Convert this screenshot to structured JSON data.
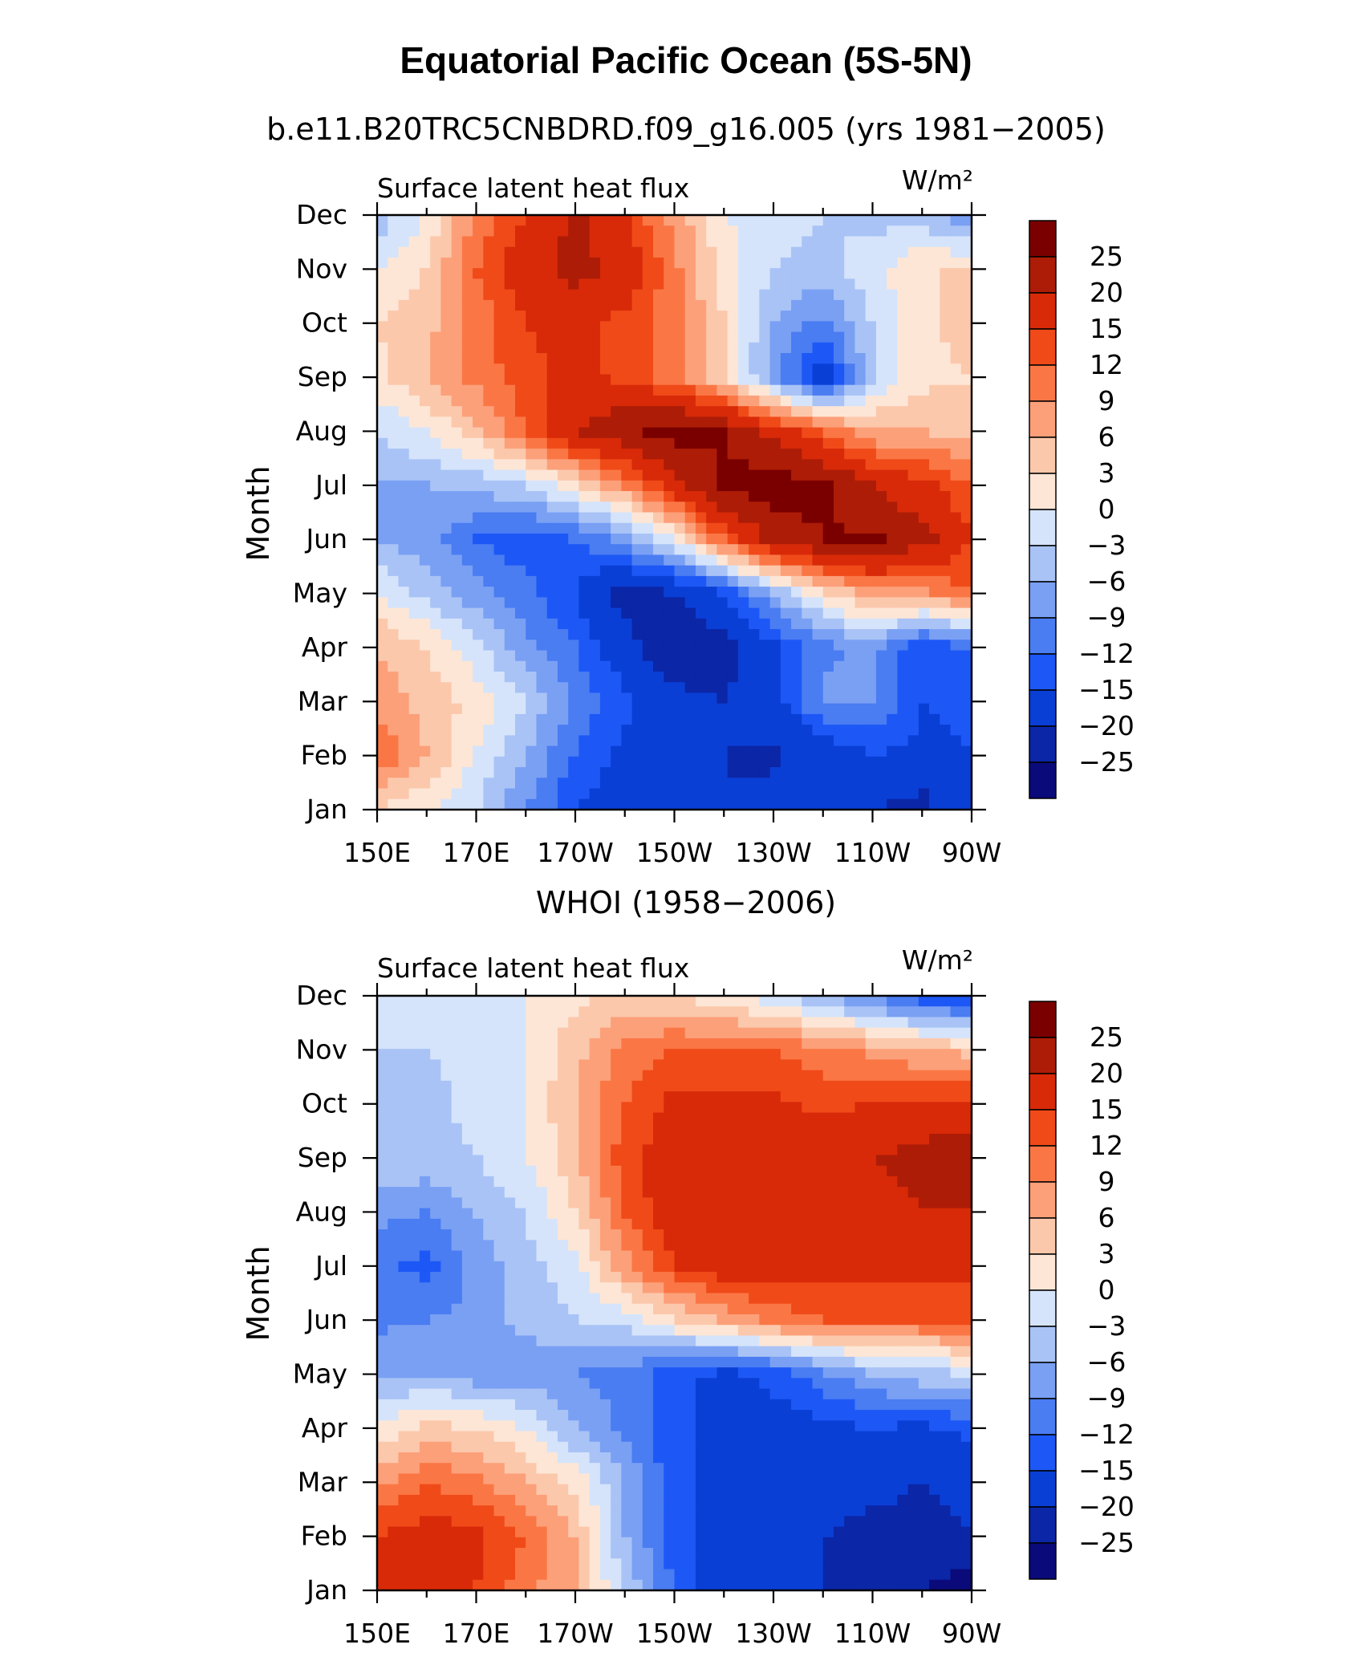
{
  "figure": {
    "title": "Equatorial Pacific Ocean (5S-5N)"
  },
  "palette": {
    "levels": [
      -25,
      -20,
      -15,
      -12,
      -9,
      -6,
      -3,
      0,
      3,
      6,
      9,
      12,
      15,
      20,
      25
    ],
    "colors": [
      "#0a0a7a",
      "#0b26a6",
      "#0a3fd6",
      "#1d58f6",
      "#4a7cf2",
      "#7aa0f4",
      "#a9c3f6",
      "#d5e4fb",
      "#fde6d6",
      "#fcc8ac",
      "#fca07a",
      "#fa7745",
      "#f04a19",
      "#d82a08",
      "#ad1c06",
      "#7a0000"
    ]
  },
  "chart_data": [
    {
      "type": "heatmap",
      "subtitle": "b.e11.B20TRC5CNBDRD.f09_g16.005 (yrs 1981−2005)",
      "left_string": "Surface latent heat flux",
      "units": "W/m²",
      "ylabel": "Month",
      "x_ticks": [
        "150E",
        "170E",
        "170W",
        "150W",
        "130W",
        "110W",
        "90W"
      ],
      "y_ticks": [
        "Jan",
        "Feb",
        "Mar",
        "Apr",
        "May",
        "Jun",
        "Jul",
        "Aug",
        "Sep",
        "Oct",
        "Nov",
        "Dec"
      ],
      "colorbar_labels": [
        "25",
        "20",
        "15",
        "12",
        "9",
        "6",
        "3",
        "0",
        "−3",
        "−6",
        "−9",
        "−12",
        "−15",
        "−20",
        "−25"
      ],
      "x_lon": [
        150,
        160,
        170,
        180,
        190,
        200,
        210,
        220,
        230,
        240,
        250,
        260,
        270
      ],
      "months": [
        1,
        2,
        3,
        4,
        5,
        6,
        7,
        8,
        9,
        10,
        11,
        12
      ],
      "z": [
        [
          3,
          0,
          -3,
          -9,
          -15,
          -18,
          -20,
          -20,
          -18,
          -15,
          -20,
          -22,
          -15
        ],
        [
          12,
          6,
          0,
          -6,
          -12,
          -16,
          -18,
          -20,
          -21,
          -18,
          -15,
          -16,
          -15
        ],
        [
          8,
          5,
          2,
          -3,
          -10,
          -14,
          -18,
          -20,
          -17,
          -8,
          -9,
          -15,
          -14
        ],
        [
          6,
          3,
          -2,
          -8,
          -12,
          -18,
          -25,
          -22,
          -16,
          -10,
          -8,
          -15,
          -12
        ],
        [
          0,
          -4,
          -8,
          -11,
          -15,
          -22,
          -20,
          -15,
          -6,
          2,
          8,
          8,
          12
        ],
        [
          -6,
          -8,
          -12,
          -14,
          -12,
          -8,
          0,
          12,
          22,
          25,
          26,
          22,
          15
        ],
        [
          -6,
          -6,
          -5,
          -3,
          2,
          9,
          18,
          26,
          28,
          26,
          20,
          16,
          12
        ],
        [
          -3,
          0,
          5,
          12,
          20,
          24,
          27,
          25,
          18,
          12,
          6,
          6,
          5
        ],
        [
          2,
          6,
          10,
          14,
          16,
          14,
          10,
          3,
          -8,
          -18,
          -3,
          2,
          3
        ],
        [
          3,
          5,
          10,
          15,
          16,
          14,
          10,
          3,
          -6,
          -10,
          -3,
          2,
          5
        ],
        [
          0,
          3,
          12,
          18,
          22,
          18,
          10,
          2,
          -3,
          -4,
          -1,
          3,
          3
        ],
        [
          -5,
          0,
          10,
          15,
          21,
          15,
          8,
          0,
          -2,
          -3,
          -4,
          -5,
          -8
        ]
      ]
    },
    {
      "type": "heatmap",
      "subtitle": "WHOI (1958−2006)",
      "left_string": "Surface latent heat flux",
      "units": "W/m²",
      "ylabel": "Month",
      "x_ticks": [
        "150E",
        "170E",
        "170W",
        "150W",
        "130W",
        "110W",
        "90W"
      ],
      "y_ticks": [
        "Jan",
        "Feb",
        "Mar",
        "Apr",
        "May",
        "Jun",
        "Jul",
        "Aug",
        "Sep",
        "Oct",
        "Nov",
        "Dec"
      ],
      "colorbar_labels": [
        "25",
        "20",
        "15",
        "12",
        "9",
        "6",
        "3",
        "0",
        "−3",
        "−6",
        "−9",
        "−12",
        "−15",
        "−20",
        "−25"
      ],
      "x_lon": [
        150,
        160,
        170,
        180,
        190,
        200,
        210,
        220,
        230,
        240,
        250,
        260,
        270
      ],
      "months": [
        1,
        2,
        3,
        4,
        5,
        6,
        7,
        8,
        9,
        10,
        11,
        12
      ],
      "z": [
        [
          16,
          16,
          15,
          10,
          6,
          -3,
          -12,
          -18,
          -20,
          -20,
          -22,
          -25,
          -28
        ],
        [
          15,
          17,
          16,
          12,
          6,
          -6,
          -14,
          -16,
          -18,
          -20,
          -22,
          -23,
          -20
        ],
        [
          8,
          12,
          10,
          6,
          2,
          -6,
          -14,
          -16,
          -17,
          -17,
          -18,
          -20,
          -18
        ],
        [
          0,
          4,
          3,
          0,
          -6,
          -10,
          -14,
          -16,
          -17,
          -16,
          -15,
          -16,
          -14
        ],
        [
          -6,
          -6,
          -8,
          -8,
          -9,
          -10,
          -14,
          -16,
          -14,
          -10,
          -6,
          -4,
          -3
        ],
        [
          -10,
          -9,
          -8,
          -5,
          -3,
          -2,
          3,
          6,
          10,
          12,
          12,
          12,
          12
        ],
        [
          -11,
          -13,
          -8,
          -4,
          -1,
          8,
          15,
          18,
          18,
          16,
          16,
          17,
          16
        ],
        [
          -8,
          -9,
          -6,
          -3,
          3,
          12,
          18,
          20,
          19,
          16,
          18,
          20,
          20
        ],
        [
          -3,
          -4,
          -3,
          0,
          5,
          14,
          17,
          18,
          17,
          18,
          20,
          22,
          24
        ],
        [
          -3,
          -4,
          -2,
          0,
          6,
          12,
          16,
          16,
          16,
          14,
          15,
          16,
          16
        ],
        [
          -3,
          -3,
          -2,
          0,
          5,
          10,
          12,
          12,
          12,
          10,
          8,
          6,
          5
        ],
        [
          -2,
          -2,
          -1,
          0,
          2,
          4,
          3,
          1,
          -2,
          -6,
          -10,
          -14,
          -16
        ]
      ]
    }
  ]
}
